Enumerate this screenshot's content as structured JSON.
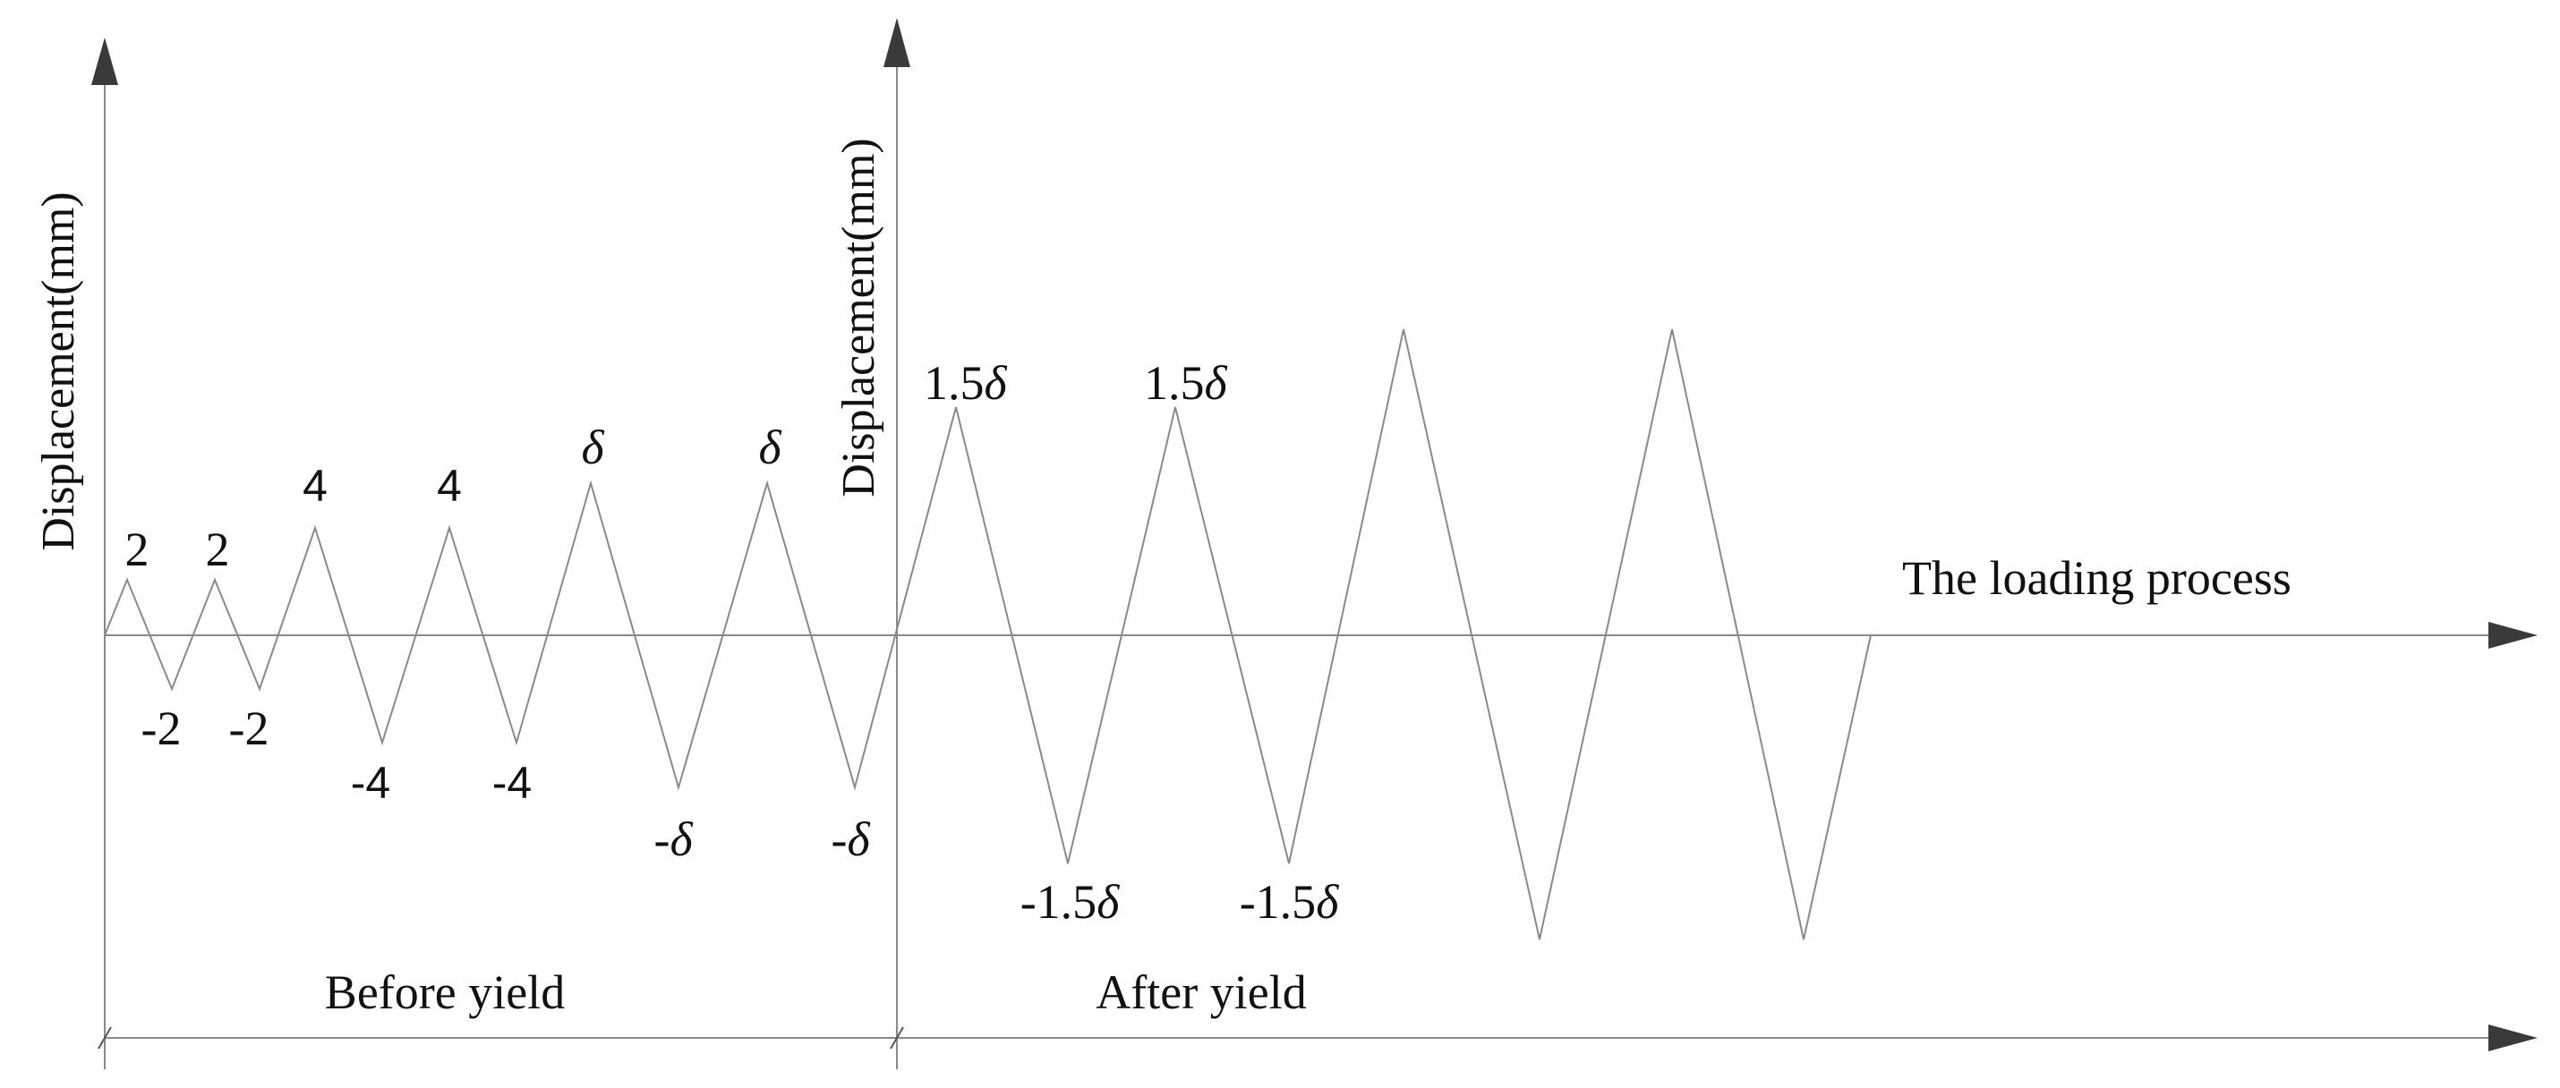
{
  "axes": {
    "y_label_before": "Displacement(mm)",
    "y_label_after": "Displacement(mm)",
    "x_label": "The loading process"
  },
  "phases": {
    "before": "Before yield",
    "after": "After yield"
  },
  "peak_labels": {
    "p1": "2",
    "p2": "2",
    "p3": "4",
    "p4": "4",
    "p5_sym": "δ",
    "p6_sym": "δ",
    "p7_num": "1.5",
    "p7_sym": "δ",
    "p8_num": "1.5",
    "p8_sym": "δ"
  },
  "valley_labels": {
    "v1": "-2",
    "v2": "-2",
    "v3": "-4",
    "v4": "-4",
    "v5_num": "-",
    "v5_sym": "δ",
    "v6_num": "-",
    "v6_sym": "δ",
    "v7_num": "-1.5",
    "v7_sym": "δ",
    "v8_num": "-1.5",
    "v8_sym": "δ"
  },
  "colors": {
    "axis": "#8a8a8a",
    "curve": "#8a8a8a",
    "arrow": "#3a3a3a",
    "text": "#111111"
  }
}
